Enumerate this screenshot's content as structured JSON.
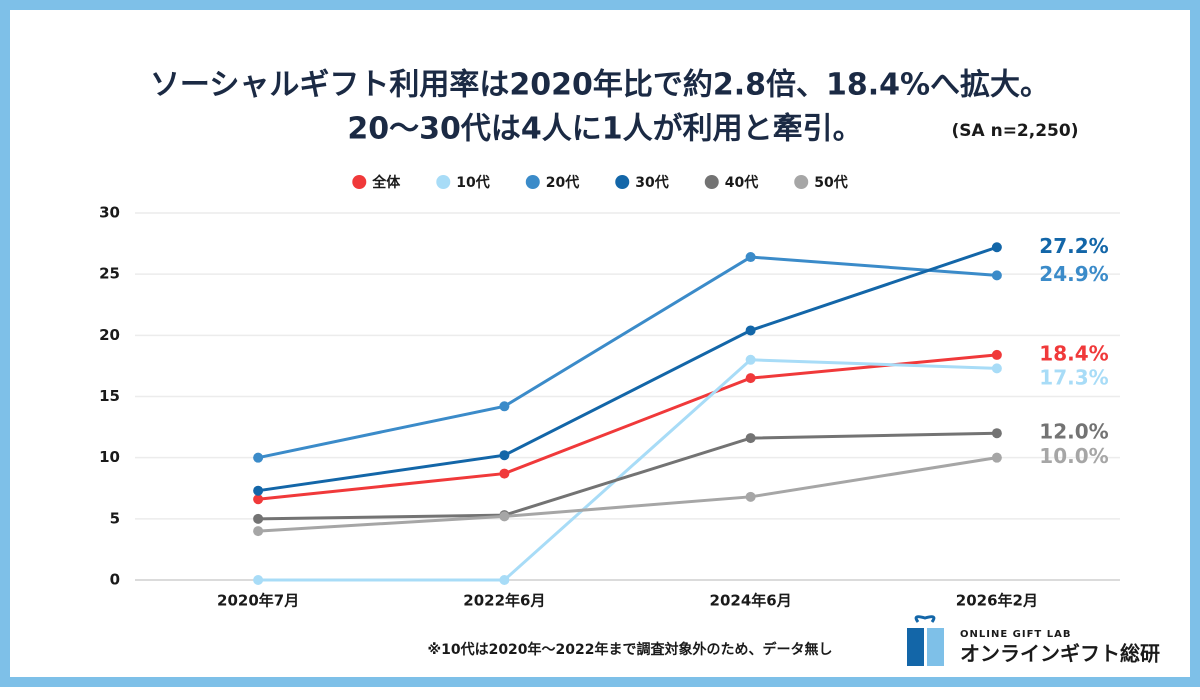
{
  "chart_data": {
    "type": "line",
    "title": [
      "ソーシャルギフト利用率は2020年比で約2.8倍、18.4%へ拡大。",
      "20〜30代は4人に1人が利用と牽引。"
    ],
    "sample_note": "(SA n=2,250)",
    "categories": [
      "2020年7月",
      "2022年6月",
      "2024年6月",
      "2026年2月"
    ],
    "series": [
      {
        "name": "全体",
        "color": "#f0393a",
        "values": [
          6.6,
          8.7,
          16.5,
          18.4
        ],
        "value_labels": [
          null,
          null,
          null,
          "18.4%"
        ]
      },
      {
        "name": "10代",
        "color": "#a8dcf7",
        "values": [
          0,
          0,
          18.0,
          17.3
        ],
        "value_labels": [
          null,
          null,
          null,
          "17.3%"
        ]
      },
      {
        "name": "20代",
        "color": "#3b8bc9",
        "values": [
          10.0,
          14.2,
          26.4,
          24.9
        ],
        "value_labels": [
          null,
          null,
          null,
          "24.9%"
        ]
      },
      {
        "name": "30代",
        "color": "#1366a8",
        "values": [
          7.3,
          10.2,
          20.4,
          27.2
        ],
        "value_labels": [
          null,
          null,
          null,
          "27.2%"
        ]
      },
      {
        "name": "40代",
        "color": "#737373",
        "values": [
          5.0,
          5.3,
          11.6,
          12.0
        ],
        "value_labels": [
          null,
          null,
          null,
          "12.0%"
        ]
      },
      {
        "name": "50代",
        "color": "#a6a6a6",
        "values": [
          4.0,
          5.2,
          6.8,
          10.0
        ],
        "value_labels": [
          null,
          null,
          null,
          "10.0%"
        ]
      }
    ],
    "ylim": [
      0,
      30
    ],
    "yticks": [
      0,
      5,
      10,
      15,
      20,
      25,
      30
    ],
    "grid": true,
    "footnote": "※10代は2020年〜2022年まで調査対象外のため、データ無し"
  },
  "brand": {
    "tagline": "ONLINE GIFT LAB",
    "name": "オンラインギフト総研"
  }
}
